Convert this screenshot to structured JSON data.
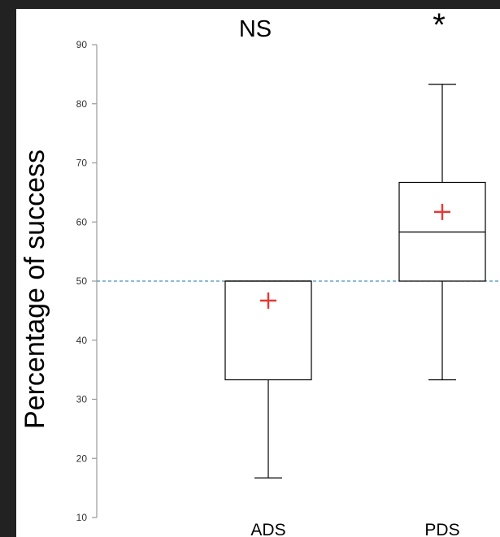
{
  "chart_data": {
    "type": "box",
    "title": "",
    "xlabel": "",
    "ylabel": "Percentage of success",
    "ylim": [
      10,
      90
    ],
    "yticks": [
      10,
      20,
      30,
      40,
      50,
      60,
      70,
      80,
      90
    ],
    "grid": false,
    "reference_line": {
      "y": 50,
      "style": "dashed",
      "color": "#4a90b8"
    },
    "categories": [
      "ADS",
      "PDS"
    ],
    "significance": [
      "NS",
      "*"
    ],
    "boxes": [
      {
        "category": "ADS",
        "whisker_low": 16.7,
        "q1": 33.3,
        "median": 50,
        "q3": 50,
        "whisker_high": 50,
        "mean": 46.7
      },
      {
        "category": "PDS",
        "whisker_low": 33.3,
        "q1": 50,
        "median": 58.3,
        "q3": 66.7,
        "whisker_high": 83.3,
        "mean": 61.7
      }
    ],
    "colors": {
      "box": "#000000",
      "mean_marker": "#e53935",
      "background": "#ffffff",
      "frame": "#222222"
    }
  }
}
